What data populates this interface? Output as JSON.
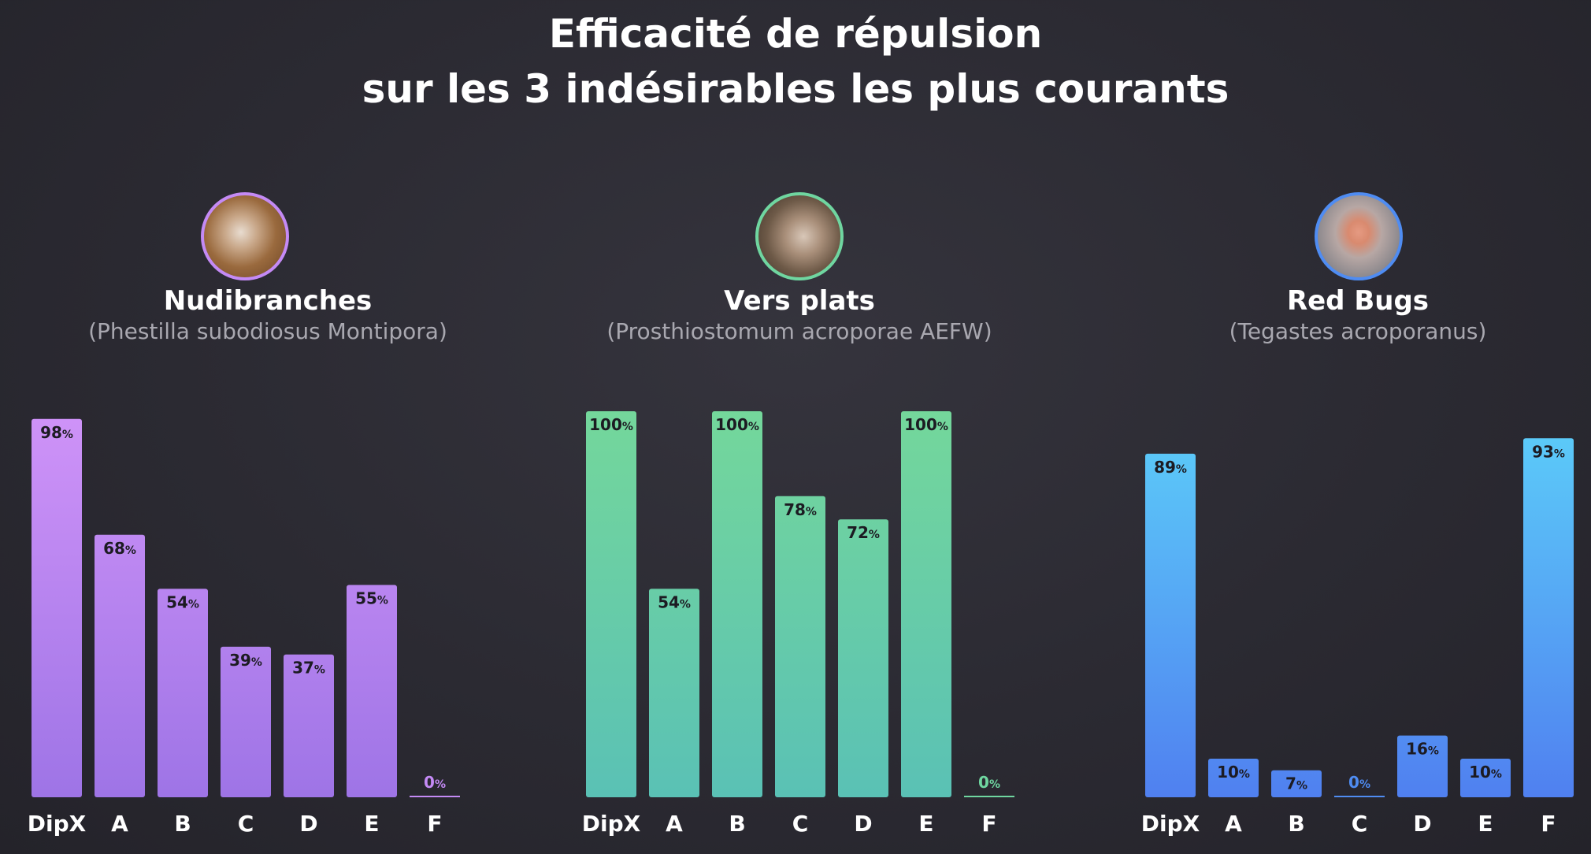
{
  "title": {
    "line1": "Efficacité de répulsion",
    "line2": "sur les 3 indésirables les plus courants"
  },
  "chart_data": [
    {
      "type": "bar",
      "title": "Nudibranches",
      "subtitle": "(Phestilla subodiosus Montipora)",
      "categories": [
        "DipX",
        "A",
        "B",
        "C",
        "D",
        "E",
        "F"
      ],
      "values": [
        98,
        68,
        54,
        39,
        37,
        55,
        0
      ],
      "unit": "%",
      "ylim": [
        0,
        100
      ],
      "colors": {
        "top": "#cf93f8",
        "bottom": "#9e74e6",
        "border": "#c48af5"
      }
    },
    {
      "type": "bar",
      "title": "Vers plats",
      "subtitle": "(Prosthiostomum acroporae AEFW)",
      "categories": [
        "DipX",
        "A",
        "B",
        "C",
        "D",
        "E",
        "F"
      ],
      "values": [
        100,
        54,
        100,
        78,
        72,
        100,
        0
      ],
      "unit": "%",
      "ylim": [
        0,
        100
      ],
      "colors": {
        "top": "#74d79b",
        "bottom": "#5ac1b5",
        "border": "#6fd6a0"
      }
    },
    {
      "type": "bar",
      "title": "Red Bugs",
      "subtitle": "(Tegastes acroporanus)",
      "categories": [
        "DipX",
        "A",
        "B",
        "C",
        "D",
        "E",
        "F"
      ],
      "values": [
        89,
        10,
        7,
        0,
        16,
        10,
        93
      ],
      "unit": "%",
      "ylim": [
        0,
        100
      ],
      "colors": {
        "top": "#5ccff9",
        "bottom": "#5080f0",
        "border": "#4f8cf2"
      }
    }
  ]
}
